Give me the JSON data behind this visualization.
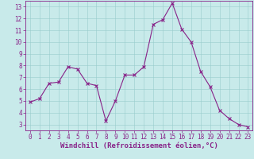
{
  "x": [
    0,
    1,
    2,
    3,
    4,
    5,
    6,
    7,
    8,
    9,
    10,
    11,
    12,
    13,
    14,
    15,
    16,
    17,
    18,
    19,
    20,
    21,
    22,
    23
  ],
  "y": [
    4.9,
    5.2,
    6.5,
    6.6,
    7.9,
    7.7,
    6.5,
    6.3,
    3.3,
    5.0,
    7.2,
    7.2,
    7.9,
    11.5,
    11.9,
    13.3,
    11.1,
    10.0,
    7.5,
    6.2,
    4.2,
    3.5,
    3.0,
    2.8
  ],
  "line_color": "#882288",
  "marker": "x",
  "marker_size": 2.5,
  "linewidth": 0.8,
  "xlabel": "Windchill (Refroidissement éolien,°C)",
  "xlabel_fontsize": 6.5,
  "xlim": [
    -0.5,
    23.5
  ],
  "ylim": [
    2.5,
    13.5
  ],
  "yticks": [
    3,
    4,
    5,
    6,
    7,
    8,
    9,
    10,
    11,
    12,
    13
  ],
  "xticks": [
    0,
    1,
    2,
    3,
    4,
    5,
    6,
    7,
    8,
    9,
    10,
    11,
    12,
    13,
    14,
    15,
    16,
    17,
    18,
    19,
    20,
    21,
    22,
    23
  ],
  "grid_color": "#99cccc",
  "bg_color": "#c8eaea",
  "tick_fontsize": 5.5,
  "tick_color": "#882288",
  "spine_color": "#882288",
  "fig_bg": "#c8eaea"
}
